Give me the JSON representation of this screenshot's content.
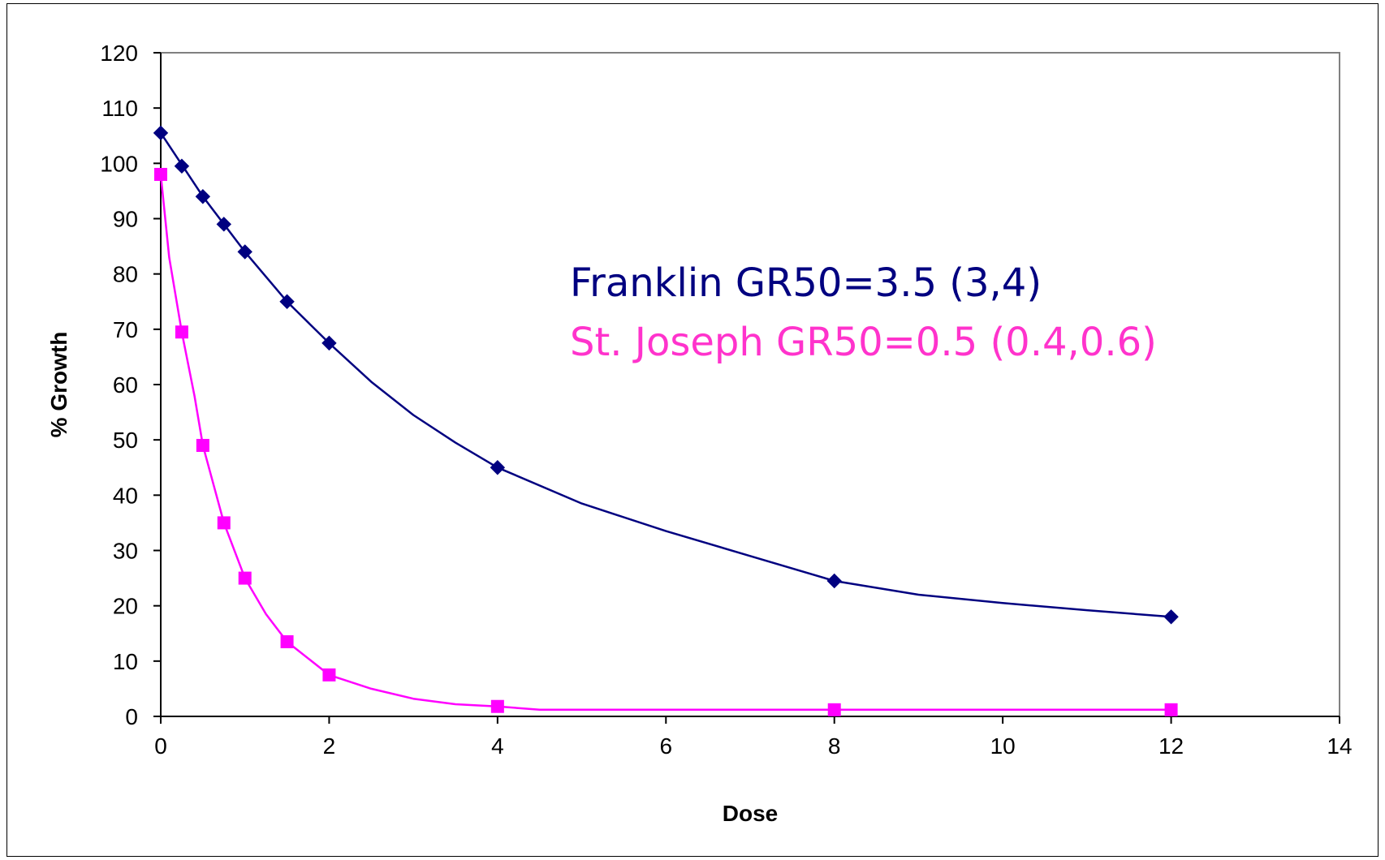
{
  "chart_data": {
    "type": "line",
    "title": "",
    "xlabel": "Dose",
    "ylabel": "% Growth",
    "xlim": [
      0,
      14
    ],
    "ylim": [
      0,
      120
    ],
    "x_ticks": [
      0,
      2,
      4,
      6,
      8,
      10,
      12,
      14
    ],
    "y_ticks": [
      0,
      10,
      20,
      30,
      40,
      50,
      60,
      70,
      80,
      90,
      100,
      110,
      120
    ],
    "grid": false,
    "legend": "none",
    "series": [
      {
        "color": "#000080",
        "marker": "diamond",
        "x": [
          0,
          0.25,
          0.5,
          0.75,
          1,
          1.5,
          2,
          4,
          8,
          12
        ],
        "y": [
          105.5,
          99.5,
          94,
          89,
          84,
          75,
          67.5,
          45,
          24.5,
          18
        ],
        "fit_x": [
          0,
          0.5,
          1,
          1.5,
          2,
          2.5,
          3,
          3.5,
          4,
          5,
          6,
          7,
          8,
          9,
          10,
          11,
          12
        ],
        "fit_y": [
          105.5,
          94,
          84,
          75,
          67.5,
          60.5,
          54.5,
          49.5,
          45,
          38.5,
          33.5,
          29,
          24.5,
          22,
          20.5,
          19.2,
          18
        ]
      },
      {
        "color": "#FF00FF",
        "marker": "square",
        "x": [
          0,
          0.25,
          0.5,
          0.75,
          1,
          1.5,
          2,
          4,
          8,
          12
        ],
        "y": [
          98,
          69.5,
          49,
          35,
          25,
          13.5,
          7.5,
          1.8,
          1.2,
          1.2
        ],
        "fit_x": [
          0,
          0.1,
          0.25,
          0.4,
          0.5,
          0.75,
          1,
          1.25,
          1.5,
          2,
          2.5,
          3,
          3.5,
          4,
          4.5,
          6,
          8,
          10,
          12
        ],
        "fit_y": [
          98,
          83,
          69.5,
          58,
          49,
          35,
          25,
          18.5,
          13.5,
          7.5,
          5,
          3.2,
          2.2,
          1.8,
          1.2,
          1.2,
          1.2,
          1.2,
          1.2
        ]
      }
    ],
    "annotations": [
      {
        "text": "Franklin GR50=3.5 (3,4)",
        "color": "#000080"
      },
      {
        "text": "St. Joseph GR50=0.5 (0.4,0.6)",
        "color": "#FF33CC"
      }
    ]
  }
}
